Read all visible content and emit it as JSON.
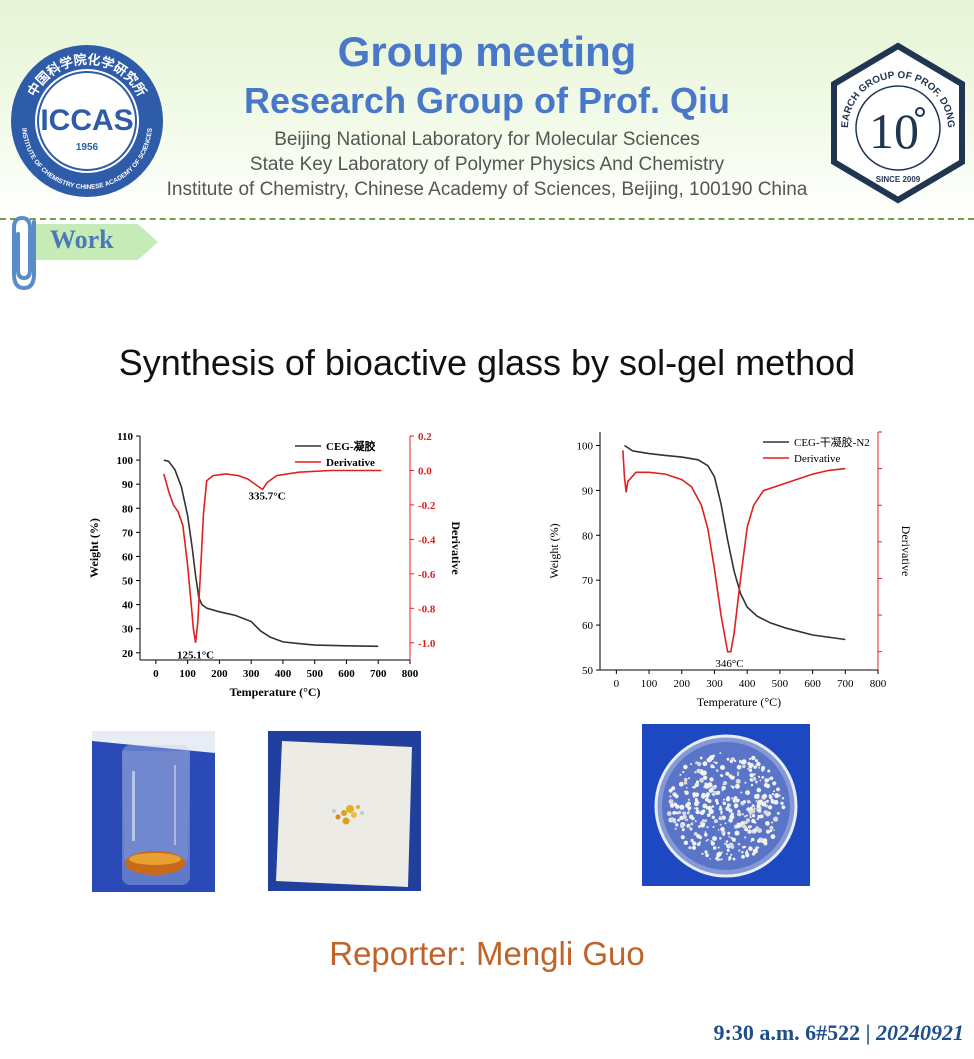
{
  "header": {
    "title": "Group meeting",
    "subtitle": "Research Group of Prof. Qiu",
    "lines": [
      "Beijing National Laboratory for Molecular Sciences",
      "State Key Laboratory of Polymer Physics And Chemistry",
      "Institute of Chemistry, Chinese Academy of Sciences, Beijing, 100190 China"
    ],
    "logo_left": {
      "name": "ICCAS",
      "year": "1956",
      "ring_top": "中国科学院化学研究所",
      "ring_bottom": "INSTITUTE OF CHEMISTRY CHINESE ACADEMY OF SCIENCES"
    },
    "logo_right": {
      "ring_top": "RESEARCH GROUP OF PROF. DONG QIU",
      "center": "10",
      "since": "SINCE 2009"
    }
  },
  "section_tab": "Work",
  "slide_title": "Synthesis of bioactive glass by sol-gel method",
  "charts": [
    {
      "type": "line",
      "xlabel": "Temperature (°C)",
      "ylabel": "Weight (%)",
      "y2label": "Derivative",
      "xlim": [
        -50,
        800
      ],
      "xticks": [
        0,
        100,
        200,
        300,
        400,
        500,
        600,
        700,
        800
      ],
      "ylim": [
        17,
        110
      ],
      "yticks": [
        20,
        30,
        40,
        50,
        60,
        70,
        80,
        90,
        100,
        110
      ],
      "y2lim": [
        -1.1,
        0.2
      ],
      "y2ticks": [
        0.2,
        0.0,
        -0.2,
        -0.4,
        -0.6,
        -0.8,
        -1.0
      ],
      "y2ticklabels": [
        "0.2",
        "0.0",
        "-0.2",
        "-0.4",
        "-0.6",
        "-0.8",
        "-1.0"
      ],
      "bold_labels": true,
      "legend": {
        "placement": "top-right",
        "weight_name": "CEG-凝胶",
        "deriv_name": "Derivative"
      },
      "annotations": [
        {
          "text": "125.1°C",
          "x": 125,
          "y": 21
        },
        {
          "text": "335.7°C",
          "x": 350,
          "y": 87
        }
      ],
      "series": [
        {
          "name": "CEG-凝胶",
          "axis": "left",
          "color": "#333333",
          "x": [
            25,
            40,
            60,
            80,
            100,
            115,
            125,
            135,
            145,
            160,
            200,
            250,
            300,
            330,
            360,
            400,
            450,
            500,
            600,
            700
          ],
          "y": [
            100,
            99.5,
            96,
            89,
            77,
            63,
            52,
            43,
            40,
            38.5,
            37,
            35.5,
            33,
            29,
            26.5,
            24.5,
            23.8,
            23.2,
            22.9,
            22.7
          ]
        },
        {
          "name": "Derivative",
          "axis": "right",
          "color": "#e02020",
          "x": [
            25,
            40,
            55,
            70,
            85,
            100,
            110,
            118,
            125,
            132,
            140,
            150,
            160,
            180,
            220,
            260,
            290,
            320,
            336,
            350,
            380,
            450,
            550,
            650,
            710
          ],
          "y": [
            -0.02,
            -0.12,
            -0.2,
            -0.24,
            -0.32,
            -0.55,
            -0.75,
            -0.92,
            -1.0,
            -0.88,
            -0.6,
            -0.25,
            -0.06,
            -0.03,
            -0.02,
            -0.03,
            -0.05,
            -0.09,
            -0.11,
            -0.07,
            -0.03,
            -0.01,
            0.0,
            0.0,
            0.0
          ]
        }
      ]
    },
    {
      "type": "line",
      "xlabel": "Temperature (°C)",
      "ylabel": "Weight (%)",
      "y2label": "Derivative",
      "xlim": [
        -50,
        800
      ],
      "xticks": [
        0,
        100,
        200,
        300,
        400,
        500,
        600,
        700,
        800
      ],
      "ylim": [
        50,
        103
      ],
      "yticks": [
        50,
        60,
        70,
        80,
        90,
        100
      ],
      "y2lim": [
        -1.1,
        0.2
      ],
      "y2ticks": [
        0.2,
        0.0,
        -0.2,
        -0.4,
        -0.6,
        -0.8,
        -1.0
      ],
      "y2ticklabels": [],
      "bold_labels": false,
      "legend": {
        "placement": "top-right",
        "weight_name": "CEG-干凝胶-N2",
        "deriv_name": "Derivative"
      },
      "annotations": [
        {
          "text": "346°C",
          "x": 346,
          "y": 52.5
        }
      ],
      "series": [
        {
          "name": "CEG-干凝胶-N2",
          "axis": "left",
          "color": "#333333",
          "x": [
            25,
            50,
            100,
            150,
            200,
            250,
            280,
            300,
            320,
            340,
            360,
            380,
            400,
            430,
            470,
            520,
            600,
            700
          ],
          "y": [
            100,
            98.8,
            98.2,
            97.8,
            97.4,
            96.8,
            95.5,
            93,
            87,
            79,
            72,
            67,
            64,
            62,
            60.5,
            59.3,
            57.8,
            56.8
          ]
        },
        {
          "name": "Derivative",
          "axis": "right",
          "color": "#e02020",
          "x": [
            20,
            25,
            30,
            35,
            45,
            60,
            100,
            150,
            200,
            230,
            260,
            280,
            300,
            320,
            340,
            350,
            360,
            380,
            400,
            420,
            450,
            500,
            550,
            600,
            650,
            700
          ],
          "y": [
            0.1,
            -0.05,
            -0.13,
            -0.07,
            -0.05,
            -0.02,
            -0.02,
            -0.03,
            -0.06,
            -0.1,
            -0.2,
            -0.33,
            -0.55,
            -0.8,
            -1.0,
            -1.0,
            -0.9,
            -0.6,
            -0.32,
            -0.2,
            -0.12,
            -0.09,
            -0.06,
            -0.03,
            -0.01,
            0.0
          ]
        }
      ]
    }
  ],
  "reporter": "Reporter: Mengli Guo",
  "footer": {
    "time": "9:30 a.m. 6#522 | ",
    "date": "20240921"
  }
}
